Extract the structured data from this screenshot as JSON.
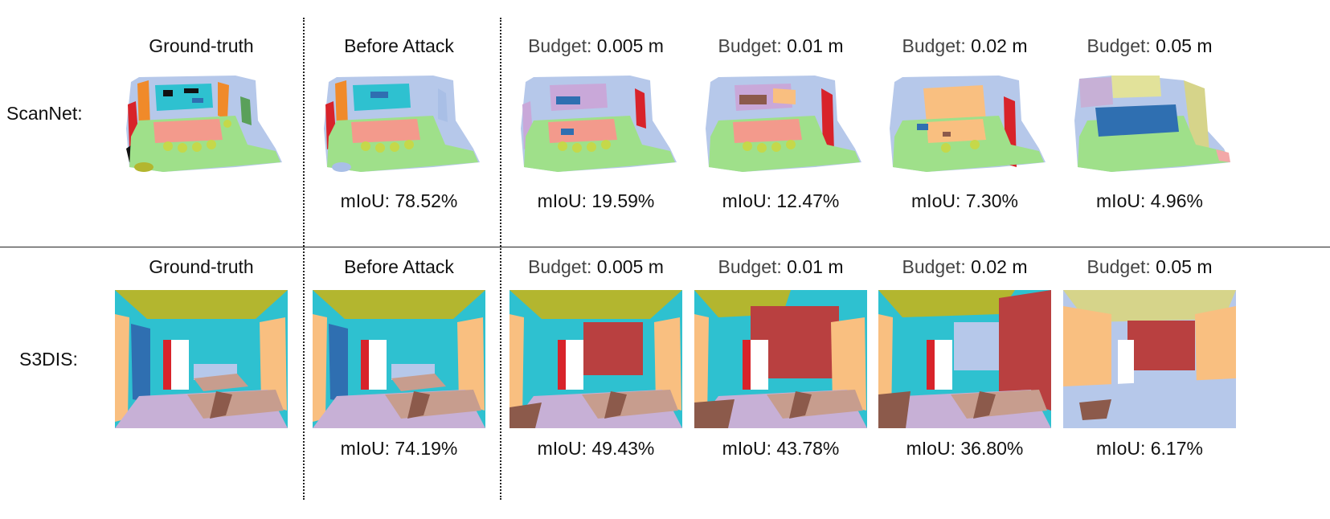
{
  "rows": [
    {
      "dataset": "ScanNet:",
      "columns": [
        {
          "title_pre": "",
          "title_main": "Ground-truth",
          "metric": ""
        },
        {
          "title_pre": "",
          "title_main": "Before Attack",
          "metric": "mIoU: 78.52%"
        },
        {
          "title_pre": "Budget:",
          "title_main": "0.005 m",
          "metric": "mIoU: 19.59%"
        },
        {
          "title_pre": "Budget:",
          "title_main": "0.01 m",
          "metric": "mIoU: 12.47%"
        },
        {
          "title_pre": "Budget:",
          "title_main": "0.02 m",
          "metric": "mIoU: 7.30%"
        },
        {
          "title_pre": "Budget:",
          "title_main": "0.05 m",
          "metric": "mIoU: 4.96%"
        }
      ]
    },
    {
      "dataset": "S3DIS:",
      "columns": [
        {
          "title_pre": "",
          "title_main": "Ground-truth",
          "metric": ""
        },
        {
          "title_pre": "",
          "title_main": "Before Attack",
          "metric": "mIoU: 74.19%"
        },
        {
          "title_pre": "Budget:",
          "title_main": "0.005 m",
          "metric": "mIoU: 49.43%"
        },
        {
          "title_pre": "Budget:",
          "title_main": "0.01 m",
          "metric": "mIoU: 43.78%"
        },
        {
          "title_pre": "Budget:",
          "title_main": "0.02 m",
          "metric": "mIoU: 36.80%"
        },
        {
          "title_pre": "Budget:",
          "title_main": "0.05 m",
          "metric": "mIoU: 6.17%"
        }
      ]
    }
  ],
  "palette": {
    "floor": "#9fe08a",
    "table": "#f39a8c",
    "chair": "#c5d84a",
    "wall_blue": "#a9bfe6",
    "orange": "#f08a2a",
    "red": "#d8232a",
    "dark_blue": "#2f6fb1",
    "purple": "#c9a8d9",
    "peach": "#f9bf80",
    "brown": "#8c5a4b",
    "teal": "#2ec1d0",
    "olive": "#b3b62f",
    "lilac": "#c7b0d6",
    "tan": "#c79d8e",
    "dark_red": "#b94040",
    "light_blue": "#b6c8ea"
  }
}
